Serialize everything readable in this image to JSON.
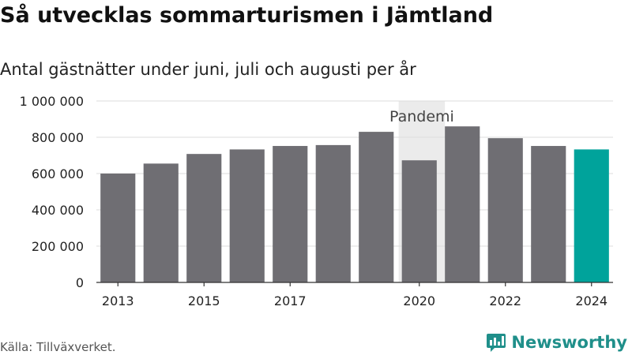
{
  "header": {
    "title": "Så utvecklas sommarturismen i Jämtland",
    "subtitle": "Antal gästnätter under juni, juli och augusti per år"
  },
  "footer": {
    "source": "Källa: Tillväxverket.",
    "brand": "Newsworthy"
  },
  "colors": {
    "bar": "#6f6e73",
    "highlight": "#00a39b",
    "annotation_band": "#ebebeb",
    "brand": "#1f8f8a"
  },
  "chart_data": {
    "type": "bar",
    "categories": [
      "2013",
      "2014",
      "2015",
      "2016",
      "2017",
      "2018",
      "2019",
      "2020",
      "2021",
      "2022",
      "2023",
      "2024"
    ],
    "values": [
      600000,
      655000,
      708000,
      733000,
      752000,
      757000,
      830000,
      673000,
      860000,
      795000,
      752000,
      733000
    ],
    "highlight_index": 11,
    "x_tick_labels": [
      "2013",
      "",
      "2015",
      "",
      "2017",
      "",
      "",
      "2020",
      "",
      "2022",
      "",
      "2024"
    ],
    "y_ticks": [
      0,
      200000,
      400000,
      600000,
      800000,
      1000000
    ],
    "y_tick_labels": [
      "0",
      "200 000",
      "400 000",
      "600 000",
      "800 000",
      "1 000 000"
    ],
    "ylim": [
      0,
      1000000
    ],
    "grid": true,
    "annotation": {
      "label": "Pandemi",
      "from": "2020",
      "to": "2021"
    },
    "title": "Så utvecklas sommarturismen i Jämtland",
    "subtitle": "Antal gästnätter under juni, juli och augusti per år"
  }
}
